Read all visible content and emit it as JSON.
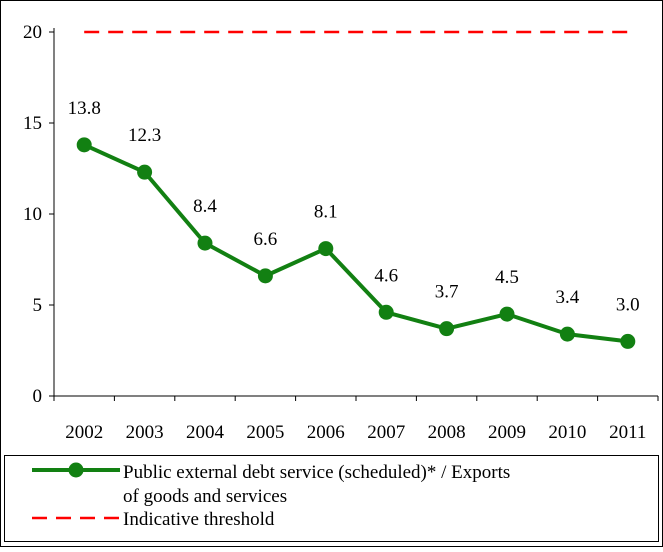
{
  "chart_data": {
    "type": "line",
    "categories": [
      "2002",
      "2003",
      "2004",
      "2005",
      "2006",
      "2007",
      "2008",
      "2009",
      "2010",
      "2011"
    ],
    "series": [
      {
        "name": "Public external debt service (scheduled)* / Exports of goods and services",
        "values": [
          13.8,
          12.3,
          8.4,
          6.6,
          8.1,
          4.6,
          3.7,
          4.5,
          3.4,
          3.0
        ],
        "data_labels": [
          "13.8",
          "12.3",
          "8.4",
          "6.6",
          "8.1",
          "4.6",
          "3.7",
          "4.5",
          "3.4",
          "3.0"
        ],
        "color": "#128012",
        "style": "solid line with circle markers"
      },
      {
        "name": "Indicative threshold",
        "values": [
          20,
          20,
          20,
          20,
          20,
          20,
          20,
          20,
          20,
          20
        ],
        "color": "#ff0000",
        "style": "dashed"
      }
    ],
    "ylim": [
      0,
      20
    ],
    "yticks": [
      "0",
      "5",
      "10",
      "15",
      "20"
    ],
    "grid": false,
    "legend": "bottom",
    "title": "",
    "xlabel": "",
    "ylabel": ""
  }
}
